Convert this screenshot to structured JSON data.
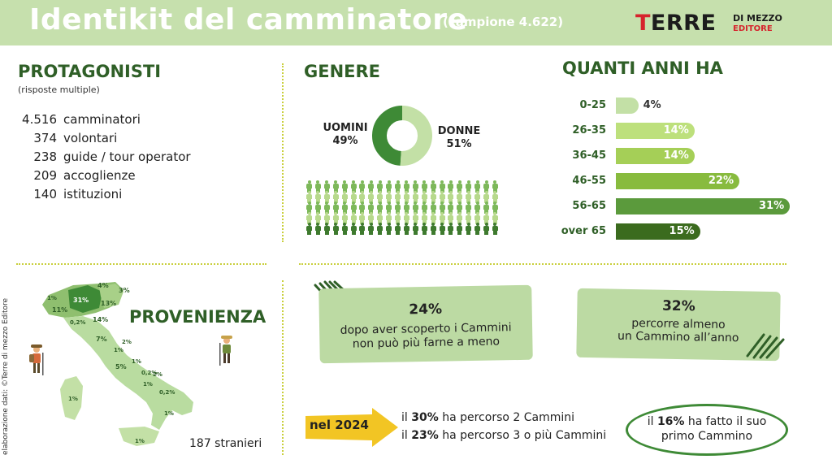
{
  "header": {
    "title": "Identikit del camminatore",
    "subtitle": "(campione 4.622)",
    "logo_main": "TERRE",
    "logo_sub": "DI MEZZO",
    "logo_sub2": "EDITORE"
  },
  "protagonisti": {
    "heading": "PROTAGONISTI",
    "note": "(risposte multiple)",
    "items": [
      {
        "value": "4.516",
        "label": "camminatori"
      },
      {
        "value": "374",
        "label": "volontari"
      },
      {
        "value": "238",
        "label": "guide / tour operator"
      },
      {
        "value": "209",
        "label": "accoglienze"
      },
      {
        "value": "140",
        "label": "istituzioni"
      }
    ]
  },
  "genere": {
    "heading": "GENERE",
    "men_label": "UOMINI",
    "men_value": "49%",
    "women_label": "DONNE",
    "women_value": "51%"
  },
  "eta": {
    "heading": "QUANTI ANNI HA"
  },
  "provenienza": {
    "heading": "PROVENIENZA",
    "stranieri": "187 stranieri",
    "credit": "elaborazione dati: ©Terre di mezzo Editore",
    "regions": [
      {
        "label": "31%"
      },
      {
        "label": "4%"
      },
      {
        "label": "3%"
      },
      {
        "label": "13%"
      },
      {
        "label": "11%"
      },
      {
        "label": "1%"
      },
      {
        "label": "0,2%"
      },
      {
        "label": "14%"
      },
      {
        "label": "7%"
      },
      {
        "label": "2%"
      },
      {
        "label": "1%"
      },
      {
        "label": "1%"
      },
      {
        "label": "5%"
      },
      {
        "label": "0,2%"
      },
      {
        "label": "2%"
      },
      {
        "label": "1%"
      },
      {
        "label": "0,2%"
      },
      {
        "label": "1%"
      },
      {
        "label": "1%"
      },
      {
        "label": "1%"
      }
    ]
  },
  "boxes": {
    "box1_pct": "24%",
    "box1_line1": "dopo aver scoperto i Cammini",
    "box1_line2": "non può più farne a meno",
    "box2_pct": "32%",
    "box2_line1": "percorre almeno",
    "box2_line2": "un Cammino all’anno"
  },
  "year": {
    "label": "nel 2024",
    "line1_pre": "il ",
    "line1_bold": "30%",
    "line1_post": " ha percorso 2 Cammini",
    "line2_pre": "il ",
    "line2_bold": "23%",
    "line2_post": " ha percorso 3 o più Cammini"
  },
  "first": {
    "line1_pre": "il ",
    "line1_bold": "16%",
    "line1_post": " ha fatto il suo",
    "line2": "primo Cammino"
  },
  "colors": {
    "header_bg": "#c6e0ad",
    "dark_green": "#2f5f27",
    "men": "#3e8a36",
    "women": "#c3e0a6",
    "accent_yellow": "#c9cf3c",
    "arrow": "#f2c524",
    "logo_red": "#d6232c"
  },
  "chart_data": [
    {
      "type": "pie",
      "categories": [
        "UOMINI",
        "DONNE"
      ],
      "values": [
        49,
        51
      ],
      "unit": "%"
    },
    {
      "type": "bar",
      "orientation": "horizontal",
      "title": "QUANTI ANNI HA",
      "categories": [
        "0-25",
        "26-35",
        "36-45",
        "46-55",
        "56-65",
        "over 65"
      ],
      "values": [
        4,
        14,
        14,
        22,
        31,
        15
      ],
      "labels": [
        "4%",
        "14%",
        "14%",
        "22%",
        "31%",
        "15%"
      ],
      "colors": [
        "#c3e0a6",
        "#bde07c",
        "#a5cf57",
        "#88bb3e",
        "#5b9a3c",
        "#3b6b1e"
      ],
      "xlim": [
        0,
        31
      ]
    }
  ]
}
